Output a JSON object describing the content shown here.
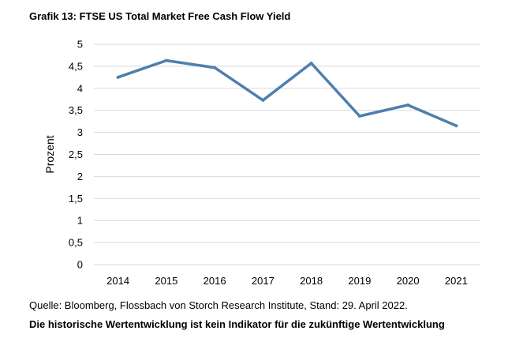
{
  "chart_data": {
    "type": "line",
    "title": "Grafik 13: FTSE US Total Market Free Cash Flow Yield",
    "xlabel": "",
    "ylabel": "Prozent",
    "categories": [
      "2014",
      "2015",
      "2016",
      "2017",
      "2018",
      "2019",
      "2020",
      "2021"
    ],
    "series": [
      {
        "values": [
          4.25,
          4.63,
          4.47,
          3.73,
          4.57,
          3.37,
          3.62,
          3.15
        ],
        "color": "#4e7fae"
      }
    ],
    "ylim": [
      0,
      5
    ],
    "yticks": [
      0,
      0.5,
      1,
      1.5,
      2,
      2.5,
      3,
      3.5,
      4,
      4.5,
      5
    ],
    "ytick_labels": [
      "0",
      "0,5",
      "1",
      "1,5",
      "2",
      "2,5",
      "3",
      "3,5",
      "4",
      "4,5",
      "5"
    ],
    "grid": true,
    "gridline_color": "#d9d9d9",
    "legend": "none"
  },
  "footer": {
    "source": "Quelle: Bloomberg, Flossbach von Storch Research Institute, Stand: 29. April 2022.",
    "disclaimer": "Die historische Wertentwicklung ist kein Indikator für die zukünftige Wertentwicklung"
  }
}
